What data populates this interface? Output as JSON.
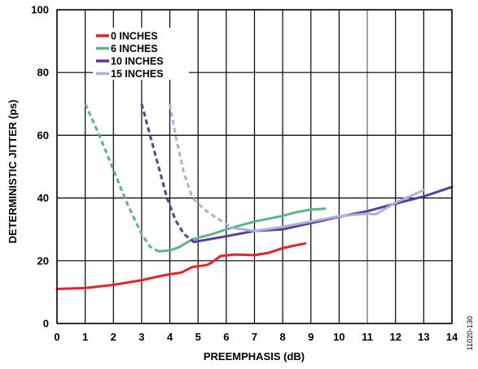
{
  "figure_id": "11020-130",
  "chart_data": {
    "type": "line",
    "xlabel": "PREEMPHASIS (dB)",
    "ylabel": "DETERMINISTIC JITTER (ps)",
    "xlim": [
      0,
      14
    ],
    "ylim": [
      0,
      100
    ],
    "xticks": [
      0,
      1,
      2,
      3,
      4,
      5,
      6,
      7,
      8,
      9,
      10,
      11,
      12,
      13,
      14
    ],
    "yticks": [
      0,
      20,
      40,
      60,
      80,
      100
    ],
    "grid": "vertical lines at every 1 dB; horizontal lines at every 20 ps",
    "highlight_gridline_x": 11,
    "legend_position": "top-left",
    "series": [
      {
        "name": "0 INCHES",
        "color": "#e3242b",
        "solid": [
          [
            0,
            11
          ],
          [
            1,
            11.3
          ],
          [
            2,
            12.3
          ],
          [
            3,
            13.8
          ],
          [
            3.5,
            14.8
          ],
          [
            4,
            15.7
          ],
          [
            4.4,
            16.2
          ],
          [
            4.8,
            18
          ],
          [
            5.3,
            18.6
          ],
          [
            5.5,
            19.5
          ],
          [
            5.8,
            21.5
          ],
          [
            6.3,
            22
          ],
          [
            7,
            21.8
          ],
          [
            7.5,
            22.5
          ],
          [
            8,
            24
          ],
          [
            8.4,
            24.8
          ],
          [
            8.8,
            25.5
          ]
        ],
        "dashed": []
      },
      {
        "name": "6 INCHES",
        "color": "#5bb589",
        "solid": [
          [
            3.6,
            23
          ],
          [
            4,
            23.3
          ],
          [
            4.3,
            24.2
          ],
          [
            4.8,
            26.8
          ],
          [
            5.5,
            28.5
          ],
          [
            6,
            30
          ],
          [
            7,
            32.5
          ],
          [
            8,
            34.3
          ],
          [
            8.5,
            35.5
          ],
          [
            9,
            36.3
          ],
          [
            9.5,
            36.6
          ]
        ],
        "dashed": [
          [
            1,
            70
          ],
          [
            1.5,
            60
          ],
          [
            2,
            49
          ],
          [
            2.5,
            38
          ],
          [
            3,
            28.5
          ],
          [
            3.3,
            24.5
          ],
          [
            3.6,
            23
          ]
        ]
      },
      {
        "name": "10 INCHES",
        "color": "#5b3c9c",
        "solid": [
          [
            4.85,
            26
          ],
          [
            5.5,
            27
          ],
          [
            6,
            27.8
          ],
          [
            7,
            29.5
          ],
          [
            8,
            30
          ],
          [
            9,
            32
          ],
          [
            10,
            34
          ],
          [
            11,
            35.8
          ],
          [
            12,
            38.2
          ],
          [
            13,
            40.5
          ],
          [
            14,
            43.5
          ]
        ],
        "dashed": [
          [
            3,
            70
          ],
          [
            3.3,
            60
          ],
          [
            3.6,
            50
          ],
          [
            3.9,
            40
          ],
          [
            4.2,
            33
          ],
          [
            4.5,
            28.5
          ],
          [
            4.85,
            26
          ]
        ]
      },
      {
        "name": "15 INCHES",
        "color": "#a4b6d8",
        "solid": [
          [
            6.2,
            30.5
          ],
          [
            7,
            29.5
          ],
          [
            8,
            30.8
          ],
          [
            9,
            32.5
          ],
          [
            10,
            34.2
          ],
          [
            11,
            35
          ],
          [
            11.3,
            34.8
          ],
          [
            12,
            38.5
          ],
          [
            13,
            42.5
          ]
        ],
        "dashed": [
          [
            4,
            70
          ],
          [
            4.2,
            60
          ],
          [
            4.5,
            48
          ],
          [
            4.8,
            40
          ],
          [
            5.2,
            36.5
          ],
          [
            5.6,
            34
          ],
          [
            6.2,
            30.5
          ]
        ]
      }
    ]
  }
}
